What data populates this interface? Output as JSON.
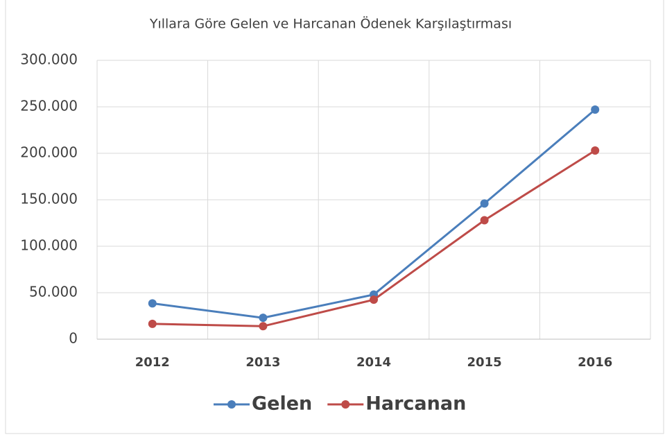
{
  "chart_data": {
    "type": "line",
    "title": "Yıllara Göre Gelen ve Harcanan Ödenek Karşılaştırması",
    "categories": [
      "2012",
      "2013",
      "2014",
      "2015",
      "2016"
    ],
    "series": [
      {
        "name": "Gelen",
        "color": "#4a7ebb",
        "values": [
          38500,
          23000,
          48000,
          146000,
          247000
        ]
      },
      {
        "name": "Harcanan",
        "color": "#be4b48",
        "values": [
          16500,
          14000,
          42500,
          128000,
          203000
        ]
      }
    ],
    "ylim": [
      0,
      300000
    ],
    "yticks": [
      0,
      {
        "value": 50000,
        "label": "50.000"
      },
      {
        "value": 100000,
        "label": "100.000"
      },
      {
        "value": 150000,
        "label": "150.000"
      },
      {
        "value": 200000,
        "label": "200.000"
      },
      {
        "value": 250000,
        "label": "250.000"
      },
      {
        "value": 300000,
        "label": "300.000"
      }
    ],
    "grid": true,
    "legend": "bottom"
  }
}
